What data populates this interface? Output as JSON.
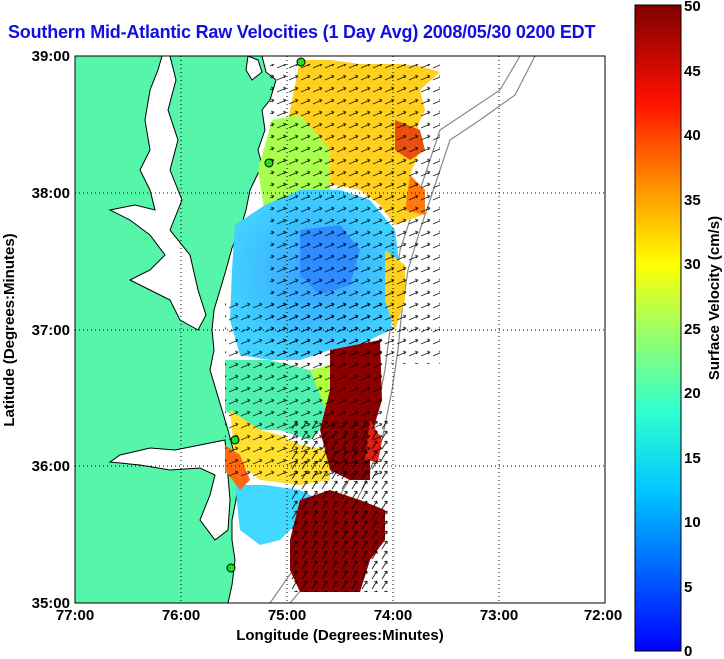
{
  "title": "Southern Mid-Atlantic Raw Velocities (1 Day Avg) 2008/05/30 0200 EDT",
  "axes": {
    "xlabel": "Longitude (Degrees:Minutes)",
    "ylabel": "Latitude (Degrees:Minutes)",
    "x_ticks": [
      "77:00",
      "76:00",
      "75:00",
      "74:00",
      "73:00",
      "72:00"
    ],
    "y_ticks": [
      "39:00",
      "38:00",
      "37:00",
      "36:00",
      "35:00"
    ],
    "x_range": [
      -77,
      -72
    ],
    "y_range": [
      35,
      39
    ],
    "grid": "dotted"
  },
  "colorbar": {
    "label": "Surface Velocity (cm/s)",
    "ticks": [
      "50",
      "45",
      "40",
      "35",
      "30",
      "25",
      "20",
      "15",
      "10",
      "5",
      "0"
    ],
    "range": [
      0,
      50
    ],
    "colormap": "jet"
  },
  "colors": {
    "land": "#55f5aa",
    "water": "#ffffff",
    "coast": "#000000",
    "title": "#1010e0",
    "station": "#22dd22"
  }
}
